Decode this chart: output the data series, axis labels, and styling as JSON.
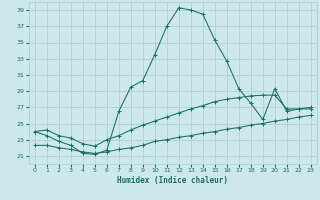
{
  "title": "",
  "xlabel": "Humidex (Indice chaleur)",
  "bg_color": "#cce8e8",
  "grid_color": "#aacccc",
  "line_color": "#1a7060",
  "xmin": -0.5,
  "xmax": 23.5,
  "ymin": 20.0,
  "ymax": 40.0,
  "yticks": [
    21,
    23,
    25,
    27,
    29,
    31,
    33,
    35,
    37,
    39
  ],
  "xticks": [
    0,
    1,
    2,
    3,
    4,
    5,
    6,
    7,
    8,
    9,
    10,
    11,
    12,
    13,
    14,
    15,
    16,
    17,
    18,
    19,
    20,
    21,
    22,
    23
  ],
  "curve1_x": [
    0,
    1,
    2,
    3,
    4,
    5,
    6,
    7,
    8,
    9,
    10,
    11,
    12,
    13,
    14,
    15,
    16,
    17,
    18,
    19,
    20,
    21,
    22,
    23
  ],
  "curve1_y": [
    24.0,
    23.5,
    22.8,
    22.3,
    21.3,
    21.2,
    21.7,
    26.5,
    29.5,
    30.3,
    33.5,
    37.0,
    39.3,
    39.0,
    38.5,
    35.3,
    32.7,
    29.3,
    27.5,
    25.5,
    29.3,
    26.5,
    26.8,
    26.8
  ],
  "curve2_x": [
    0,
    1,
    2,
    3,
    4,
    5,
    6,
    7,
    8,
    9,
    10,
    11,
    12,
    13,
    14,
    15,
    16,
    17,
    18,
    19,
    20,
    21,
    22,
    23
  ],
  "curve2_y": [
    24.0,
    24.2,
    23.5,
    23.2,
    22.5,
    22.2,
    23.0,
    23.5,
    24.2,
    24.8,
    25.3,
    25.8,
    26.3,
    26.8,
    27.2,
    27.7,
    28.0,
    28.2,
    28.4,
    28.5,
    28.5,
    26.8,
    26.8,
    27.0
  ],
  "curve3_x": [
    0,
    1,
    2,
    3,
    4,
    5,
    6,
    7,
    8,
    9,
    10,
    11,
    12,
    13,
    14,
    15,
    16,
    17,
    18,
    19,
    20,
    21,
    22,
    23
  ],
  "curve3_y": [
    22.3,
    22.3,
    22.0,
    21.8,
    21.5,
    21.3,
    21.5,
    21.8,
    22.0,
    22.3,
    22.8,
    23.0,
    23.3,
    23.5,
    23.8,
    24.0,
    24.3,
    24.5,
    24.8,
    25.0,
    25.3,
    25.5,
    25.8,
    26.0
  ]
}
